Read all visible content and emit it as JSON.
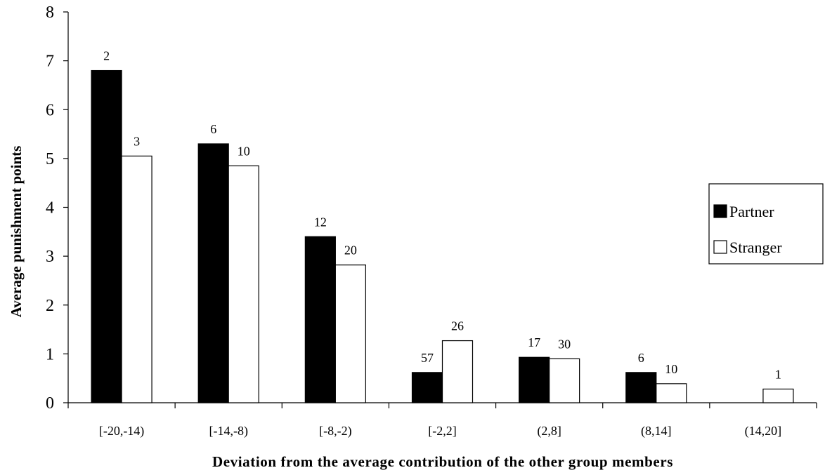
{
  "chart_data": {
    "type": "bar",
    "categories": [
      "[-20,-14)",
      "[-14,-8)",
      "[-8,-2)",
      "[-2,2]",
      "(2,8]",
      "(8,14]",
      "(14,20]"
    ],
    "series": [
      {
        "name": "Partner",
        "color": "#000000",
        "values": [
          6.8,
          5.3,
          3.4,
          0.62,
          0.93,
          0.62,
          null
        ],
        "labels": [
          "2",
          "6",
          "12",
          "57",
          "17",
          "6",
          ""
        ]
      },
      {
        "name": "Stranger",
        "color": "#ffffff",
        "values": [
          5.05,
          4.85,
          2.82,
          1.27,
          0.9,
          0.39,
          0.28
        ],
        "labels": [
          "3",
          "10",
          "20",
          "26",
          "30",
          "10",
          "1"
        ]
      }
    ],
    "xlabel": "Deviation from the average contribution of the other group members",
    "ylabel": "Average punishment points",
    "ylim": [
      0,
      8
    ],
    "yticks": [
      "0",
      "1",
      "2",
      "3",
      "4",
      "5",
      "6",
      "7",
      "8"
    ],
    "grid": false,
    "legend_position": "right"
  }
}
